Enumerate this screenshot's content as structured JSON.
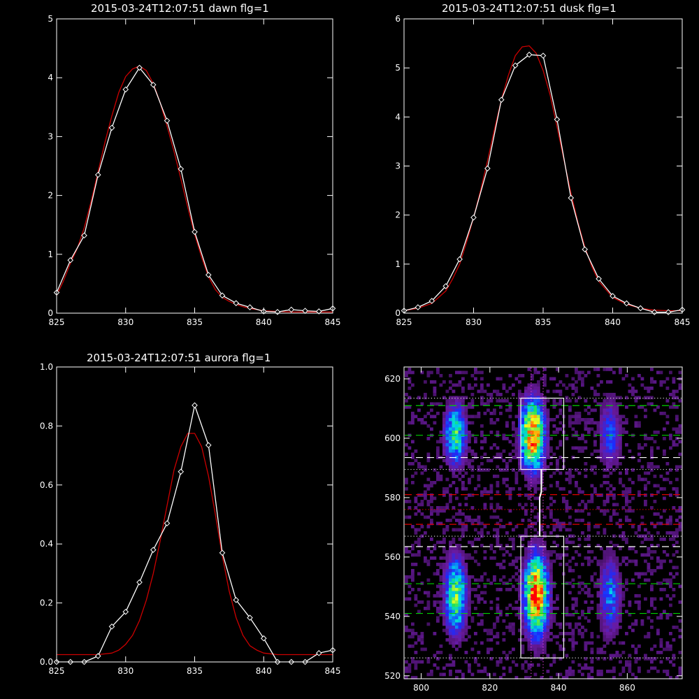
{
  "chart_data": [
    {
      "type": "line",
      "title": "2015-03-24T12:07:51 dawn flg=1",
      "xlim": [
        825,
        845
      ],
      "ylim": [
        0,
        5
      ],
      "xticks": [
        825,
        830,
        835,
        840,
        845
      ],
      "yticks": [
        0,
        1,
        2,
        3,
        4,
        5
      ],
      "series": [
        {
          "role": "data",
          "color": "#ffffff",
          "marker": "diamond",
          "x": [
            825,
            826,
            827,
            828,
            829,
            830,
            831,
            832,
            833,
            834,
            835,
            836,
            837,
            838,
            839,
            840,
            841,
            842,
            843,
            844,
            845
          ],
          "y": [
            0.35,
            0.9,
            1.32,
            2.35,
            3.15,
            3.8,
            4.17,
            3.88,
            3.27,
            2.45,
            1.38,
            0.65,
            0.3,
            0.17,
            0.1,
            0.03,
            0.02,
            0.06,
            0.04,
            0.03,
            0.08
          ]
        },
        {
          "role": "fit",
          "color": "#cc0000",
          "x": [
            825,
            825.5,
            826,
            826.5,
            827,
            827.5,
            828,
            828.5,
            829,
            829.5,
            830,
            830.5,
            831,
            831.5,
            832,
            832.5,
            833,
            833.5,
            834,
            834.5,
            835,
            835.5,
            836,
            836.5,
            837,
            837.5,
            838,
            838.5,
            839,
            839.5,
            840,
            841,
            842,
            843,
            844,
            845
          ],
          "y": [
            0.3,
            0.55,
            0.85,
            1.1,
            1.45,
            1.9,
            2.4,
            2.9,
            3.35,
            3.75,
            4.02,
            4.15,
            4.2,
            4.12,
            3.9,
            3.58,
            3.18,
            2.75,
            2.28,
            1.8,
            1.34,
            0.95,
            0.62,
            0.4,
            0.27,
            0.2,
            0.15,
            0.11,
            0.08,
            0.06,
            0.04,
            0.03,
            0.02,
            0.02,
            0.02,
            0.02
          ]
        }
      ]
    },
    {
      "type": "line",
      "title": "2015-03-24T12:07:51 dusk flg=1",
      "xlim": [
        825,
        845
      ],
      "ylim": [
        0,
        6
      ],
      "xticks": [
        825,
        830,
        835,
        840,
        845
      ],
      "yticks": [
        0,
        1,
        2,
        3,
        4,
        5,
        6
      ],
      "series": [
        {
          "role": "data",
          "color": "#ffffff",
          "marker": "diamond",
          "x": [
            825,
            826,
            827,
            828,
            829,
            830,
            831,
            832,
            833,
            834,
            835,
            836,
            837,
            838,
            839,
            840,
            841,
            842,
            843,
            844,
            845
          ],
          "y": [
            0.05,
            0.12,
            0.25,
            0.55,
            1.1,
            1.95,
            2.95,
            4.35,
            5.05,
            5.27,
            5.25,
            3.95,
            2.35,
            1.3,
            0.7,
            0.35,
            0.2,
            0.1,
            0.02,
            0.02,
            0.07
          ]
        },
        {
          "role": "fit",
          "color": "#cc0000",
          "x": [
            825,
            826,
            827,
            828,
            828.5,
            829,
            829.5,
            830,
            830.5,
            831,
            831.5,
            832,
            832.5,
            833,
            833.5,
            834,
            834.5,
            835,
            835.5,
            836,
            836.5,
            837,
            837.5,
            838,
            838.5,
            839,
            840,
            841,
            842,
            843,
            844,
            845
          ],
          "y": [
            0.05,
            0.1,
            0.2,
            0.45,
            0.7,
            1.0,
            1.45,
            1.95,
            2.5,
            3.1,
            3.75,
            4.35,
            4.85,
            5.25,
            5.43,
            5.45,
            5.3,
            4.95,
            4.45,
            3.8,
            3.12,
            2.45,
            1.85,
            1.35,
            0.95,
            0.65,
            0.32,
            0.18,
            0.1,
            0.06,
            0.05,
            0.05
          ]
        }
      ]
    },
    {
      "type": "line",
      "title": "2015-03-24T12:07:51 aurora flg=1",
      "xlim": [
        825,
        845
      ],
      "ylim": [
        0,
        1.0
      ],
      "xticks": [
        825,
        830,
        835,
        840,
        845
      ],
      "yticks": [
        0.0,
        0.2,
        0.4,
        0.6,
        0.8,
        1.0
      ],
      "ytick_labels": [
        "0.0",
        "0.2",
        "0.4",
        "0.6",
        "0.8",
        "1.0"
      ],
      "series": [
        {
          "role": "data",
          "color": "#ffffff",
          "marker": "diamond",
          "x": [
            825,
            826,
            827,
            828,
            829,
            830,
            831,
            832,
            833,
            834,
            835,
            836,
            837,
            838,
            839,
            840,
            841,
            842,
            843,
            844,
            845
          ],
          "y": [
            0.0,
            0.0,
            0.0,
            0.02,
            0.12,
            0.17,
            0.27,
            0.38,
            0.47,
            0.645,
            0.87,
            0.735,
            0.37,
            0.21,
            0.15,
            0.08,
            0.0,
            0.0,
            0.0,
            0.03,
            0.04
          ]
        },
        {
          "role": "fit",
          "color": "#cc0000",
          "x": [
            825,
            826,
            827,
            828,
            829,
            829.5,
            830,
            830.5,
            831,
            831.5,
            832,
            832.5,
            833,
            833.5,
            834,
            834.5,
            835,
            835.5,
            836,
            836.5,
            837,
            837.5,
            838,
            838.5,
            839,
            839.5,
            840,
            841,
            842,
            843,
            844,
            845
          ],
          "y": [
            0.025,
            0.025,
            0.025,
            0.025,
            0.03,
            0.04,
            0.06,
            0.09,
            0.14,
            0.21,
            0.3,
            0.41,
            0.53,
            0.65,
            0.73,
            0.775,
            0.775,
            0.73,
            0.63,
            0.5,
            0.36,
            0.24,
            0.15,
            0.09,
            0.055,
            0.04,
            0.03,
            0.025,
            0.025,
            0.025,
            0.025,
            0.025
          ]
        }
      ]
    },
    {
      "type": "heatmap",
      "xlim": [
        795,
        876
      ],
      "ylim": [
        519,
        624
      ],
      "xticks": [
        800,
        820,
        840,
        860
      ],
      "yticks": [
        520,
        540,
        560,
        580,
        600,
        620
      ],
      "colormap": [
        "#2a0a3a",
        "#6a1aa0",
        "#1a2cff",
        "#00d8e8",
        "#18e060",
        "#f0ff20",
        "#ff9000",
        "#ff0000"
      ],
      "blobs": [
        {
          "x": 810,
          "y": 601,
          "peak": 0.55,
          "sx": 2.2,
          "sy": 7
        },
        {
          "x": 810,
          "y": 547,
          "peak": 0.6,
          "sx": 2.2,
          "sy": 9
        },
        {
          "x": 832.5,
          "y": 601,
          "peak": 0.95,
          "sx": 2.3,
          "sy": 8
        },
        {
          "x": 833.5,
          "y": 547,
          "peak": 1.0,
          "sx": 2.3,
          "sy": 9
        },
        {
          "x": 855,
          "y": 601,
          "peak": 0.3,
          "sx": 2.2,
          "sy": 8
        },
        {
          "x": 855,
          "y": 547,
          "peak": 0.35,
          "sx": 2.2,
          "sy": 9
        }
      ],
      "hlines": [
        {
          "y": 613.5,
          "color": "#d0d0d0",
          "style": "dotted"
        },
        {
          "y": 611,
          "color": "#00d000",
          "style": "dashed"
        },
        {
          "y": 601,
          "color": "#00d000",
          "style": "dashed"
        },
        {
          "y": 593.5,
          "color": "#ffffff",
          "style": "dashed"
        },
        {
          "y": 589.5,
          "color": "#d0d0d0",
          "style": "dotted"
        },
        {
          "y": 581,
          "color": "#e00000",
          "style": "dashed"
        },
        {
          "y": 576,
          "color": "#e00000",
          "style": "dotted"
        },
        {
          "y": 571,
          "color": "#e00000",
          "style": "dashed"
        },
        {
          "y": 567,
          "color": "#d0d0d0",
          "style": "dotted"
        },
        {
          "y": 563.5,
          "color": "#ffffff",
          "style": "dashed"
        },
        {
          "y": 551,
          "color": "#00d000",
          "style": "dashed"
        },
        {
          "y": 541,
          "color": "#00d000",
          "style": "dashed"
        },
        {
          "y": 526,
          "color": "#d0d0d0",
          "style": "dotted"
        }
      ],
      "vlines": [
        {
          "x": 832,
          "color": "#e040e0",
          "style": "dotted"
        },
        {
          "x": 835.5,
          "color": "#e040e0",
          "style": "dotted"
        }
      ],
      "boxes": [
        {
          "x0": 829,
          "x1": 841.5,
          "y0": 589.5,
          "y1": 613.5,
          "color": "#ffffff"
        },
        {
          "x0": 829,
          "x1": 841.5,
          "y0": 526,
          "y1": 567,
          "color": "#ffffff"
        }
      ],
      "trace": {
        "x": [
          834.5,
          834.5,
          835,
          835
        ],
        "y": [
          567,
          580,
          582,
          589.5
        ],
        "color": "#ffffff"
      }
    }
  ]
}
